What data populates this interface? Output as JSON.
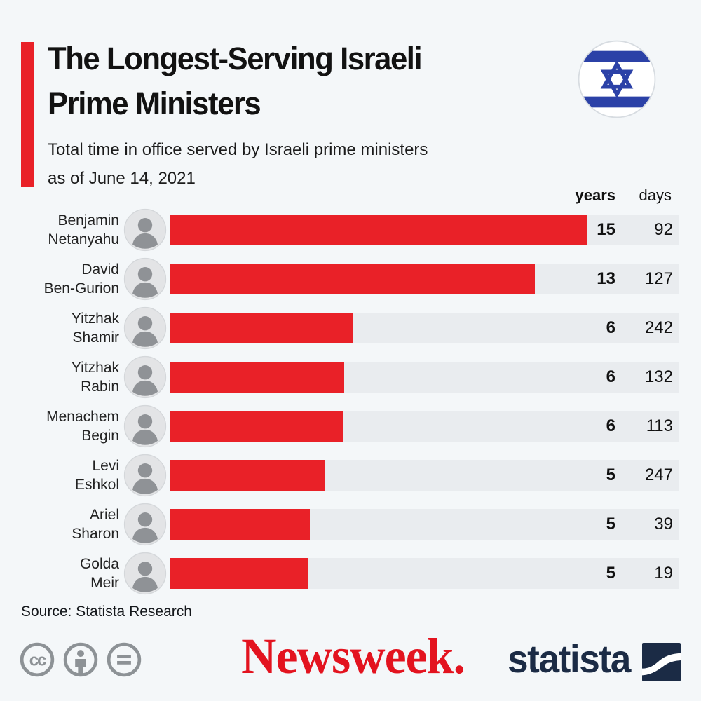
{
  "theme": {
    "background": "#f4f7f9",
    "track_color": "#e9ecef",
    "accent_red": "#e92128",
    "newsweek_red": "#e3131f",
    "statista_navy": "#1b2b45",
    "flag_blue": "#2b41a7",
    "icon_gray": "#8d9296"
  },
  "header": {
    "title_lines": [
      "The Longest-Serving Israeli",
      "Prime Ministers"
    ],
    "subtitle_lines": [
      "Total time in office served by Israeli prime ministers",
      "as of June 14, 2021"
    ],
    "flag_icon": "israel-flag-circle"
  },
  "columns": {
    "years_label": "years",
    "days_label": "days"
  },
  "chart_data": {
    "type": "bar",
    "orientation": "horizontal",
    "title": "The Longest-Serving Israeli Prime Ministers",
    "subtitle": "Total time in office served by Israeli prime ministers as of June 14, 2021",
    "value_columns": [
      "years",
      "days"
    ],
    "axis_max_years": 18.6,
    "bar_color": "#e92128",
    "entries": [
      {
        "name": "Benjamin Netanyahu",
        "name_lines": [
          "Benjamin",
          "Netanyahu"
        ],
        "years": 15,
        "days": 92
      },
      {
        "name": "David Ben-Gurion",
        "name_lines": [
          "David",
          "Ben-Gurion"
        ],
        "years": 13,
        "days": 127
      },
      {
        "name": "Yitzhak Shamir",
        "name_lines": [
          "Yitzhak",
          "Shamir"
        ],
        "years": 6,
        "days": 242
      },
      {
        "name": "Yitzhak Rabin",
        "name_lines": [
          "Yitzhak",
          "Rabin"
        ],
        "years": 6,
        "days": 132
      },
      {
        "name": "Menachem Begin",
        "name_lines": [
          "Menachem",
          "Begin"
        ],
        "years": 6,
        "days": 113
      },
      {
        "name": "Levi Eshkol",
        "name_lines": [
          "Levi",
          "Eshkol"
        ],
        "years": 5,
        "days": 247
      },
      {
        "name": "Ariel Sharon",
        "name_lines": [
          "Ariel",
          "Sharon"
        ],
        "years": 5,
        "days": 39
      },
      {
        "name": "Golda Meir",
        "name_lines": [
          "Golda",
          "Meir"
        ],
        "years": 5,
        "days": 19
      }
    ]
  },
  "source": "Source: Statista Research",
  "footer": {
    "license_icons": [
      "cc-icon",
      "attribution-person-icon",
      "equals-icon"
    ],
    "newsweek_logo": "Newsweek.",
    "statista_logo": "statista"
  }
}
